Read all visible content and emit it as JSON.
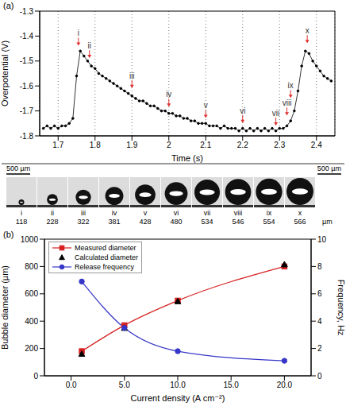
{
  "chart_data": [
    {
      "panel": "(a)",
      "type": "line",
      "x_label": "Time (s)",
      "y_label": "Overpotential (V)",
      "xlim": [
        1.65,
        2.45
      ],
      "xticks": [
        1.7,
        1.8,
        1.9,
        2.0,
        2.1,
        2.2,
        2.3,
        2.4
      ],
      "ylim": [
        -1.8,
        -1.3
      ],
      "yticks": [
        -1.8,
        -1.7,
        -1.6,
        -1.5,
        -1.4,
        -1.3
      ],
      "grid": true,
      "color": "#000000",
      "marker": "circle",
      "line_style": "solid",
      "x": [
        1.66,
        1.67,
        1.68,
        1.69,
        1.7,
        1.71,
        1.72,
        1.73,
        1.74,
        1.75,
        1.76,
        1.77,
        1.78,
        1.79,
        1.8,
        1.81,
        1.82,
        1.83,
        1.84,
        1.85,
        1.86,
        1.87,
        1.88,
        1.89,
        1.9,
        1.91,
        1.92,
        1.93,
        1.94,
        1.95,
        1.96,
        1.97,
        1.98,
        1.99,
        2.0,
        2.01,
        2.02,
        2.03,
        2.04,
        2.05,
        2.06,
        2.07,
        2.08,
        2.09,
        2.1,
        2.11,
        2.12,
        2.13,
        2.14,
        2.15,
        2.16,
        2.17,
        2.18,
        2.19,
        2.2,
        2.21,
        2.22,
        2.23,
        2.24,
        2.25,
        2.26,
        2.27,
        2.28,
        2.29,
        2.3,
        2.31,
        2.32,
        2.33,
        2.34,
        2.35,
        2.36,
        2.37,
        2.38,
        2.39,
        2.4,
        2.41,
        2.42,
        2.43,
        2.44
      ],
      "values": [
        -1.77,
        -1.76,
        -1.77,
        -1.76,
        -1.77,
        -1.76,
        -1.76,
        -1.75,
        -1.73,
        -1.56,
        -1.46,
        -1.48,
        -1.5,
        -1.52,
        -1.53,
        -1.55,
        -1.56,
        -1.57,
        -1.58,
        -1.59,
        -1.6,
        -1.61,
        -1.62,
        -1.63,
        -1.64,
        -1.65,
        -1.66,
        -1.66,
        -1.67,
        -1.68,
        -1.68,
        -1.69,
        -1.7,
        -1.7,
        -1.71,
        -1.71,
        -1.72,
        -1.72,
        -1.73,
        -1.73,
        -1.74,
        -1.74,
        -1.75,
        -1.75,
        -1.75,
        -1.76,
        -1.76,
        -1.76,
        -1.77,
        -1.76,
        -1.77,
        -1.77,
        -1.77,
        -1.78,
        -1.77,
        -1.78,
        -1.77,
        -1.78,
        -1.77,
        -1.78,
        -1.77,
        -1.78,
        -1.77,
        -1.78,
        -1.77,
        -1.77,
        -1.76,
        -1.74,
        -1.7,
        -1.62,
        -1.52,
        -1.46,
        -1.47,
        -1.5,
        -1.52,
        -1.54,
        -1.56,
        -1.57,
        -1.58
      ],
      "annotations": [
        {
          "text": "i",
          "x": 1.755,
          "y": -1.4
        },
        {
          "text": "ii",
          "x": 1.785,
          "y": -1.45
        },
        {
          "text": "iii",
          "x": 1.9,
          "y": -1.57
        },
        {
          "text": "iv",
          "x": 2.0,
          "y": -1.645
        },
        {
          "text": "v",
          "x": 2.1,
          "y": -1.69
        },
        {
          "text": "vi",
          "x": 2.2,
          "y": -1.71
        },
        {
          "text": "vii",
          "x": 2.29,
          "y": -1.72
        },
        {
          "text": "viii",
          "x": 2.32,
          "y": -1.68
        },
        {
          "text": "ix",
          "x": 2.33,
          "y": -1.61
        },
        {
          "text": "x",
          "x": 2.375,
          "y": -1.39
        }
      ]
    },
    {
      "panel": "(b)",
      "type": "line",
      "x_label": "Current density (A cm⁻²)",
      "y_label": "Bubble diameter  (µm)",
      "y2_label": "Frequency, Hz",
      "xlim": [
        -2.5,
        22.5
      ],
      "xticks": [
        {
          "value": 0,
          "label": "0.0"
        },
        {
          "value": 5,
          "label": "5.0"
        },
        {
          "value": 10,
          "label": "10.0"
        },
        {
          "value": 15,
          "label": "15.0"
        },
        {
          "value": 20,
          "label": "20.0"
        }
      ],
      "ylim": [
        0,
        1000
      ],
      "yticks": [
        0,
        200,
        400,
        600,
        800,
        1000
      ],
      "y2lim": [
        0,
        10
      ],
      "y2ticks": [
        0,
        2,
        4,
        6,
        8,
        10
      ],
      "grid": false,
      "legend": "upper left",
      "x": [
        1,
        5,
        10,
        20
      ],
      "series": [
        {
          "name": "Measured diameter",
          "color": "#d62020",
          "marker": "square",
          "line_style": "solid",
          "values": [
            180,
            370,
            550,
            800
          ]
        },
        {
          "name": "Calculated diameter",
          "color": "#000000",
          "marker": "triangle",
          "line_style": "none",
          "values": [
            160,
            350,
            545,
            815
          ]
        },
        {
          "name": "Release frequency",
          "color": "#3636c8",
          "marker": "circle",
          "line_style": "solid",
          "axis": "y2",
          "values": [
            6.9,
            3.5,
            1.8,
            1.1
          ]
        }
      ]
    }
  ],
  "bubble_strip": {
    "frames": [
      "i",
      "ii",
      "iii",
      "iv",
      "v",
      "vi",
      "vii",
      "viii",
      "ix",
      "x"
    ],
    "diameters": [
      118,
      228,
      322,
      381,
      428,
      480,
      534,
      546,
      554,
      566
    ],
    "unit": "µm",
    "scale_bar": {
      "value": 500,
      "label": "500 µm"
    }
  }
}
